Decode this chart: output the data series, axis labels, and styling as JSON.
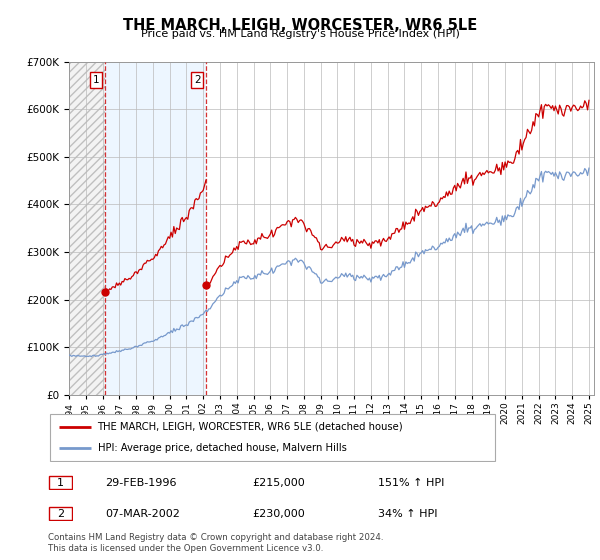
{
  "title": "THE MARCH, LEIGH, WORCESTER, WR6 5LE",
  "subtitle": "Price paid vs. HM Land Registry's House Price Index (HPI)",
  "sale1_date": "29-FEB-1996",
  "sale1_price": 215000,
  "sale1_hpi": "151% ↑ HPI",
  "sale1_year": 1996.16,
  "sale2_date": "07-MAR-2002",
  "sale2_price": 230000,
  "sale2_hpi": "34% ↑ HPI",
  "sale2_year": 2002.19,
  "red_line_color": "#cc0000",
  "blue_line_color": "#7799cc",
  "grid_color": "#bbbbbb",
  "legend_label_red": "THE MARCH, LEIGH, WORCESTER, WR6 5LE (detached house)",
  "legend_label_blue": "HPI: Average price, detached house, Malvern Hills",
  "footer": "Contains HM Land Registry data © Crown copyright and database right 2024.\nThis data is licensed under the Open Government Licence v3.0.",
  "xmin": 1994.0,
  "xmax": 2025.3,
  "ymin": 0,
  "ymax": 700000,
  "yticks": [
    0,
    100000,
    200000,
    300000,
    400000,
    500000,
    600000,
    700000
  ]
}
